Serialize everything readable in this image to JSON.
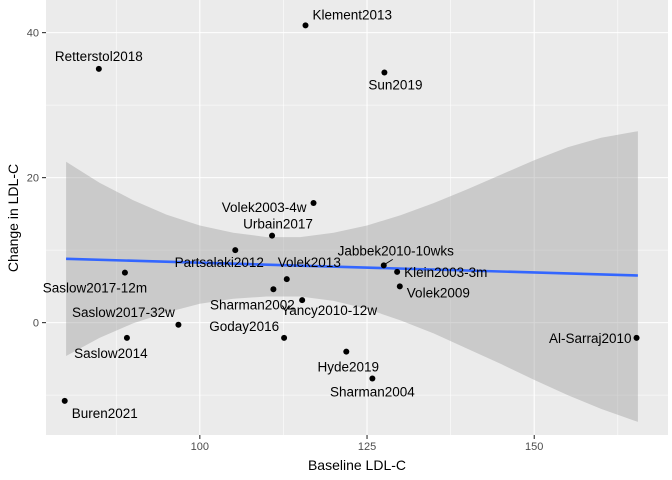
{
  "chart_data": {
    "type": "scatter",
    "xlabel": "Baseline LDL-C",
    "ylabel": "Change in LDL-C",
    "xlim": [
      77,
      170
    ],
    "ylim": [
      -15.5,
      44.5
    ],
    "x_ticks": [
      {
        "value": 100,
        "label": "100"
      },
      {
        "value": 125,
        "label": "125"
      },
      {
        "value": 150,
        "label": "150"
      }
    ],
    "y_ticks": [
      {
        "value": 0,
        "label": "0"
      },
      {
        "value": 20,
        "label": "20"
      },
      {
        "value": 40,
        "label": "40"
      }
    ],
    "grid": true,
    "background": "#ebebeb",
    "points": [
      {
        "label": "Klement2013",
        "x": 115.8,
        "y": 41.0
      },
      {
        "label": "Retterstol2018",
        "x": 84.9,
        "y": 35.0
      },
      {
        "label": "Sun2019",
        "x": 127.6,
        "y": 34.5
      },
      {
        "label": "Volek2003-4w",
        "x": 117.0,
        "y": 16.5
      },
      {
        "label": "Urbain2017",
        "x": 110.8,
        "y": 12.0
      },
      {
        "label": "Partsalaki2012",
        "x": 105.3,
        "y": 10.0
      },
      {
        "label": "Jabbek2010-10wks",
        "x": 127.5,
        "y": 7.9
      },
      {
        "label": "Saslow2017-12m",
        "x": 88.8,
        "y": 6.9
      },
      {
        "label": "Klein2003-3m",
        "x": 129.5,
        "y": 7.0
      },
      {
        "label": "Volek2013",
        "x": 113.0,
        "y": 6.0
      },
      {
        "label": "Volek2009",
        "x": 129.9,
        "y": 5.0
      },
      {
        "label": "Sharman2002",
        "x": 111.0,
        "y": 4.6
      },
      {
        "label": "Yancy2010-12w",
        "x": 115.3,
        "y": 3.1
      },
      {
        "label": "Saslow2017-32w",
        "x": 96.8,
        "y": -0.3
      },
      {
        "label": "Goday2016",
        "x": 112.6,
        "y": -2.1
      },
      {
        "label": "Saslow2014",
        "x": 89.1,
        "y": -2.1
      },
      {
        "label": "Al-Sarraj2010",
        "x": 165.3,
        "y": -2.1
      },
      {
        "label": "Hyde2019",
        "x": 121.9,
        "y": -4.0
      },
      {
        "label": "Sharman2004",
        "x": 125.8,
        "y": -7.7
      },
      {
        "label": "Buren2021",
        "x": 79.8,
        "y": -10.8
      }
    ],
    "fit": {
      "x_range": [
        80,
        165.5
      ],
      "y_start": 8.8,
      "y_end": 6.5,
      "line_color": "#3366ff",
      "band_color": "#999999",
      "ci_upper": [
        [
          80,
          22.2
        ],
        [
          85,
          19.3
        ],
        [
          90,
          16.9
        ],
        [
          95,
          14.9
        ],
        [
          100,
          13.4
        ],
        [
          105,
          12.4
        ],
        [
          110,
          11.8
        ],
        [
          115,
          11.8
        ],
        [
          120,
          12.4
        ],
        [
          125,
          13.4
        ],
        [
          130,
          14.8
        ],
        [
          135,
          16.5
        ],
        [
          140,
          18.4
        ],
        [
          145,
          20.4
        ],
        [
          150,
          22.4
        ],
        [
          155,
          24.2
        ],
        [
          160,
          25.5
        ],
        [
          165.5,
          26.4
        ]
      ],
      "ci_lower": [
        [
          80,
          -4.6
        ],
        [
          85,
          -2.1
        ],
        [
          90,
          -0.1
        ],
        [
          95,
          1.4
        ],
        [
          100,
          2.6
        ],
        [
          105,
          3.3
        ],
        [
          110,
          3.6
        ],
        [
          115,
          3.6
        ],
        [
          120,
          3.0
        ],
        [
          125,
          1.9
        ],
        [
          130,
          0.3
        ],
        [
          135,
          -1.5
        ],
        [
          140,
          -3.6
        ],
        [
          145,
          -5.7
        ],
        [
          150,
          -7.9
        ],
        [
          155,
          -10.0
        ],
        [
          160,
          -11.9
        ],
        [
          165.5,
          -13.7
        ]
      ]
    }
  }
}
